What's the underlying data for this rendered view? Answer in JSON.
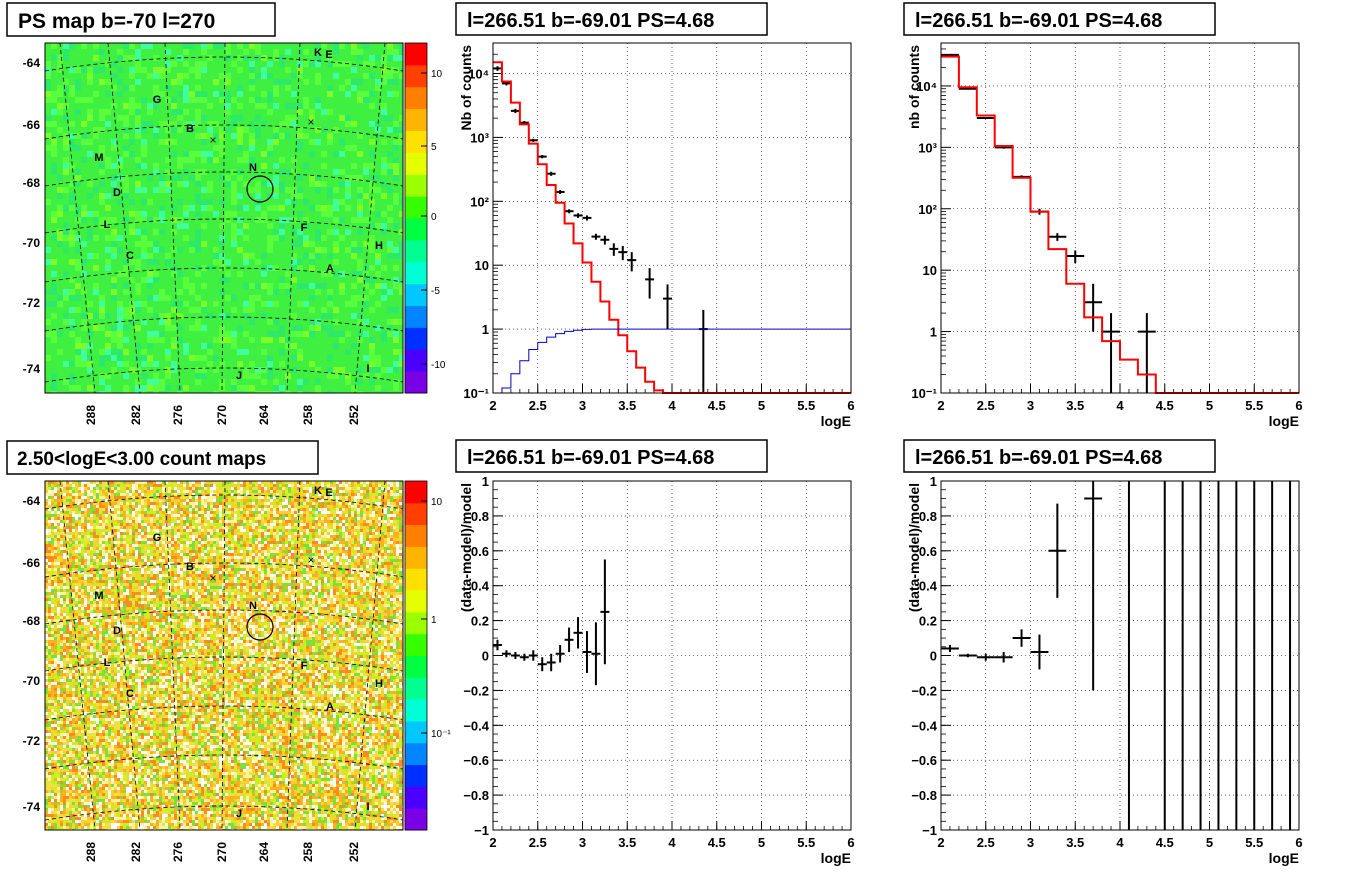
{
  "colors": {
    "data": "#000000",
    "model": "#ff0000",
    "background_curve": "#0000c8",
    "grid": "#000000",
    "palette": [
      "#7a00e6",
      "#4b00ff",
      "#0030ff",
      "#0085ff",
      "#00c8ff",
      "#00ffd5",
      "#00ff90",
      "#00ff40",
      "#35ff00",
      "#9cff00",
      "#e6ff00",
      "#ffe000",
      "#ffb400",
      "#ff8000",
      "#ff4000",
      "#ff0000"
    ]
  },
  "panels": {
    "ps_map": {
      "title": "PS map b=-70 l=270",
      "y_ticks": [
        "-64",
        "-66",
        "-68",
        "-70",
        "-72",
        "-74"
      ],
      "x_ticks": [
        "288",
        "282",
        "276",
        "270",
        "264",
        "258",
        "252"
      ],
      "colorbar_ticks": [
        "10",
        "5",
        "0",
        "-5",
        "-10"
      ],
      "sources": [
        "K",
        "E",
        "G",
        "B",
        "M",
        "N",
        "D",
        "L",
        "F",
        "C",
        "H",
        "A",
        "J",
        "I"
      ],
      "circle_label": "N"
    },
    "count_map": {
      "title": "2.50<logE<3.00 count maps",
      "y_ticks": [
        "-64",
        "-66",
        "-68",
        "-70",
        "-72",
        "-74"
      ],
      "x_ticks": [
        "288",
        "282",
        "276",
        "270",
        "264",
        "258",
        "252"
      ],
      "colorbar_ticks": [
        "10",
        "1",
        "10⁻¹"
      ],
      "sources": [
        "K",
        "E",
        "G",
        "B",
        "M",
        "N",
        "D",
        "L",
        "F",
        "C",
        "H",
        "A",
        "J",
        "I"
      ],
      "circle_label": "N"
    }
  },
  "chart_data": [
    {
      "id": "spectrum_left",
      "type": "line",
      "title": "l=266.51 b=-69.01 PS=4.68",
      "xlabel": "logE",
      "ylabel": "Nb of counts",
      "xlim": [
        2,
        6
      ],
      "ylim": [
        0.1,
        30000
      ],
      "yscale": "log",
      "grid": true,
      "x_ticks": [
        "2",
        "2.5",
        "3",
        "3.5",
        "4",
        "4.5",
        "5",
        "5.5",
        "6"
      ],
      "y_ticks": [
        {
          "v": 0.1,
          "label": "10⁻¹"
        },
        {
          "v": 1,
          "label": "1"
        },
        {
          "v": 10,
          "label": "10"
        },
        {
          "v": 100,
          "label": "10²"
        },
        {
          "v": 1000,
          "label": "10³"
        },
        {
          "v": 10000,
          "label": "10⁴"
        }
      ],
      "series": [
        {
          "role": "data",
          "x": [
            2.05,
            2.15,
            2.25,
            2.35,
            2.45,
            2.55,
            2.65,
            2.75,
            2.85,
            2.95,
            3.05,
            3.15,
            3.25,
            3.35,
            3.45,
            3.55,
            3.75,
            3.95,
            4.35
          ],
          "y": [
            12000,
            7000,
            2600,
            1700,
            900,
            500,
            270,
            140,
            70,
            60,
            55,
            28,
            25,
            18,
            16,
            12,
            6,
            3,
            1
          ],
          "xerr": 0.05,
          "ylo": [
            11000,
            6500,
            2400,
            1600,
            850,
            470,
            250,
            130,
            65,
            55,
            50,
            25,
            21,
            14,
            12,
            8,
            3,
            1,
            0.1
          ],
          "yhi": [
            13000,
            7500,
            2800,
            1800,
            950,
            530,
            290,
            150,
            75,
            65,
            60,
            31,
            29,
            22,
            20,
            16,
            9,
            5,
            2
          ]
        },
        {
          "role": "model",
          "edges": [
            2.0,
            2.1,
            2.2,
            2.3,
            2.4,
            2.5,
            2.6,
            2.7,
            2.8,
            2.9,
            3.0,
            3.1,
            3.2,
            3.3,
            3.4,
            3.5,
            3.6,
            3.7,
            3.8,
            3.9,
            4.0,
            6.0
          ],
          "values": [
            15000,
            7500,
            3500,
            1600,
            800,
            380,
            180,
            95,
            45,
            22,
            11,
            5.5,
            2.7,
            1.4,
            0.8,
            0.45,
            0.25,
            0.15,
            0.11,
            0.1,
            0.1
          ]
        },
        {
          "role": "background",
          "edges": [
            2.0,
            2.1,
            2.2,
            2.3,
            2.4,
            2.5,
            2.6,
            2.7,
            2.8,
            2.9,
            3.0,
            3.1,
            3.2,
            3.3,
            3.4,
            3.5,
            3.6,
            3.7,
            3.8,
            3.9,
            4.0,
            6.0
          ],
          "values": [
            0.08,
            0.12,
            0.2,
            0.32,
            0.48,
            0.62,
            0.75,
            0.85,
            0.92,
            0.96,
            0.99,
            1.0,
            1.0,
            1.0,
            1.0,
            1.0,
            1.0,
            1.0,
            1.0,
            1.0,
            1.0
          ]
        }
      ]
    },
    {
      "id": "spectrum_right",
      "type": "line",
      "title": "l=266.51 b=-69.01 PS=4.68",
      "xlabel": "logE",
      "ylabel": "nb of counts",
      "xlim": [
        2,
        6
      ],
      "ylim": [
        0.1,
        50000
      ],
      "yscale": "log",
      "grid": true,
      "x_ticks": [
        "2",
        "2.5",
        "3",
        "3.5",
        "4",
        "4.5",
        "5",
        "5.5",
        "6"
      ],
      "y_ticks": [
        {
          "v": 0.1,
          "label": "10⁻¹"
        },
        {
          "v": 1,
          "label": "1"
        },
        {
          "v": 10,
          "label": "10"
        },
        {
          "v": 100,
          "label": "10²"
        },
        {
          "v": 1000,
          "label": "10³"
        },
        {
          "v": 10000,
          "label": "10⁴"
        }
      ],
      "series": [
        {
          "role": "data",
          "x": [
            2.1,
            2.3,
            2.5,
            2.7,
            2.9,
            3.1,
            3.3,
            3.5,
            3.7,
            3.9,
            4.3
          ],
          "y": [
            32000,
            9000,
            3000,
            1000,
            330,
            90,
            35,
            17,
            3,
            1,
            1
          ],
          "xerr": 0.1,
          "ylo": [
            31000,
            8700,
            2900,
            950,
            310,
            80,
            30,
            13,
            1,
            0.1,
            0.1
          ],
          "yhi": [
            33000,
            9300,
            3100,
            1050,
            350,
            100,
            40,
            21,
            6,
            2,
            2
          ]
        },
        {
          "role": "model",
          "edges": [
            2.0,
            2.2,
            2.4,
            2.6,
            2.8,
            3.0,
            3.2,
            3.4,
            3.6,
            3.8,
            4.0,
            4.2,
            4.4,
            6.0
          ],
          "values": [
            30000,
            9500,
            3300,
            1050,
            320,
            90,
            22,
            6,
            1.7,
            0.7,
            0.35,
            0.2,
            0.1
          ]
        }
      ]
    },
    {
      "id": "residual_left",
      "type": "scatter",
      "title": "l=266.51 b=-69.01 PS=4.68",
      "xlabel": "logE",
      "ylabel": "(data-model)/model",
      "xlim": [
        2,
        6
      ],
      "ylim": [
        -1,
        1
      ],
      "grid": true,
      "x_ticks": [
        "2",
        "2.5",
        "3",
        "3.5",
        "4",
        "4.5",
        "5",
        "5.5",
        "6"
      ],
      "y_ticks": [
        {
          "v": -1,
          "label": "−1"
        },
        {
          "v": -0.8,
          "label": "−0.8"
        },
        {
          "v": -0.6,
          "label": "−0.6"
        },
        {
          "v": -0.4,
          "label": "−0.4"
        },
        {
          "v": -0.2,
          "label": "−0.2"
        },
        {
          "v": 0,
          "label": "0"
        },
        {
          "v": 0.2,
          "label": "0.2"
        },
        {
          "v": 0.4,
          "label": "0.4"
        },
        {
          "v": 0.6,
          "label": "0.6"
        },
        {
          "v": 0.8,
          "label": "0.8"
        },
        {
          "v": 1,
          "label": "1"
        }
      ],
      "series": [
        {
          "role": "data",
          "x": [
            2.05,
            2.15,
            2.25,
            2.35,
            2.45,
            2.55,
            2.65,
            2.75,
            2.85,
            2.95,
            3.05,
            3.15,
            3.25
          ],
          "y": [
            0.06,
            0.01,
            0.0,
            -0.01,
            0.0,
            -0.05,
            -0.04,
            0.01,
            0.09,
            0.13,
            0.02,
            0.01,
            0.25
          ],
          "xerr": 0.05,
          "yerr": [
            0.03,
            0.02,
            0.02,
            0.02,
            0.03,
            0.04,
            0.05,
            0.05,
            0.07,
            0.09,
            0.12,
            0.18,
            0.3
          ]
        }
      ]
    },
    {
      "id": "residual_right",
      "type": "scatter",
      "title": "l=266.51 b=-69.01 PS=4.68",
      "xlabel": "logE",
      "ylabel": "(data-model)/model",
      "xlim": [
        2,
        6
      ],
      "ylim": [
        -1,
        1
      ],
      "grid": true,
      "x_ticks": [
        "2",
        "2.5",
        "3",
        "3.5",
        "4",
        "4.5",
        "5",
        "5.5",
        "6"
      ],
      "y_ticks": [
        {
          "v": -1,
          "label": "−1"
        },
        {
          "v": -0.8,
          "label": "−0.8"
        },
        {
          "v": -0.6,
          "label": "−0.6"
        },
        {
          "v": -0.4,
          "label": "−0.4"
        },
        {
          "v": -0.2,
          "label": "−0.2"
        },
        {
          "v": 0,
          "label": "0"
        },
        {
          "v": 0.2,
          "label": "0.2"
        },
        {
          "v": 0.4,
          "label": "0.4"
        },
        {
          "v": 0.6,
          "label": "0.6"
        },
        {
          "v": 0.8,
          "label": "0.8"
        },
        {
          "v": 1,
          "label": "1"
        }
      ],
      "series": [
        {
          "role": "data",
          "x": [
            2.1,
            2.3,
            2.5,
            2.7,
            2.9,
            3.1,
            3.3,
            3.7
          ],
          "y": [
            0.04,
            0.0,
            -0.01,
            -0.01,
            0.1,
            0.02,
            0.6,
            0.9
          ],
          "xerr": 0.1,
          "yerr": [
            0.02,
            0.01,
            0.02,
            0.03,
            0.05,
            0.1,
            0.27,
            1.1
          ]
        },
        {
          "role": "full_range_bars",
          "x": [
            4.1,
            4.5,
            4.7,
            4.9,
            5.1,
            5.3,
            5.5,
            5.7,
            5.9
          ]
        }
      ]
    }
  ]
}
